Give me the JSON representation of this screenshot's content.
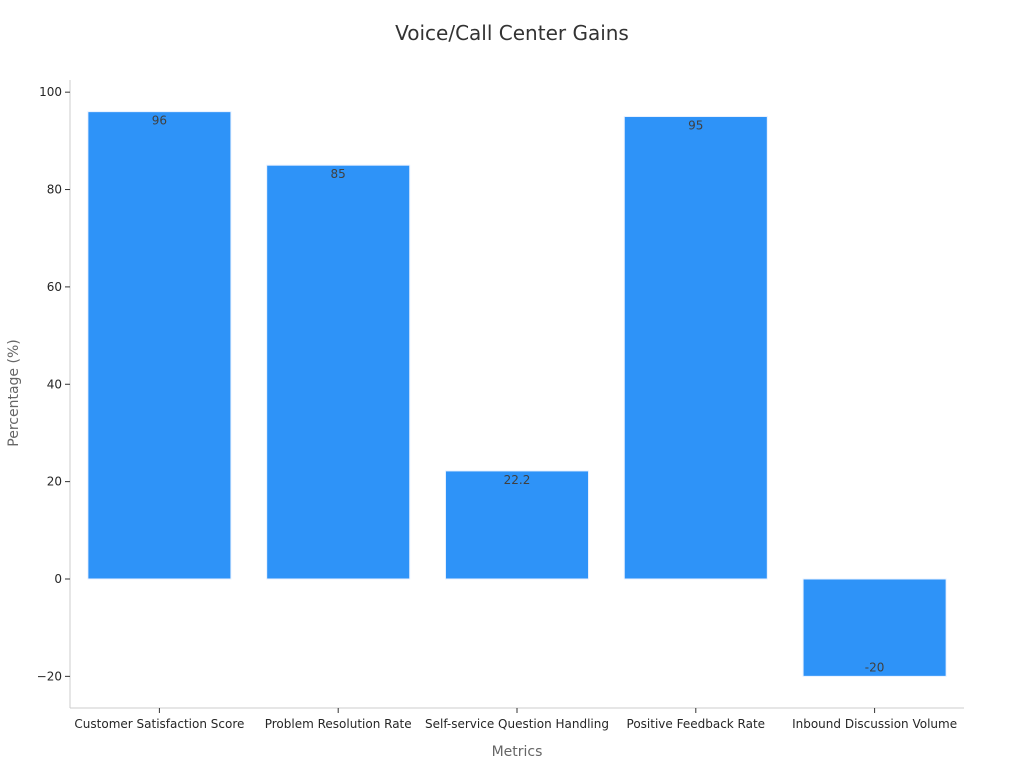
{
  "chart_data": {
    "type": "bar",
    "title": "Voice/Call Center Gains",
    "xlabel": "Metrics",
    "ylabel": "Percentage (%)",
    "categories": [
      "Customer Satisfaction Score",
      "Problem Resolution Rate",
      "Self-service Question Handling",
      "Positive Feedback Rate",
      "Inbound Discussion Volume"
    ],
    "values": [
      96,
      85,
      22.2,
      95,
      -20
    ],
    "data_labels": [
      "96",
      "85",
      "22.2",
      "95",
      "-20"
    ],
    "ylim": [
      -26.5,
      102.5
    ],
    "yticks": [
      -20,
      0,
      20,
      40,
      60,
      80,
      100
    ],
    "ytick_labels": [
      "−20",
      "0",
      "20",
      "40",
      "60",
      "80",
      "100"
    ],
    "bar_color": "#2e93f8",
    "grid": false,
    "legend": "none"
  }
}
